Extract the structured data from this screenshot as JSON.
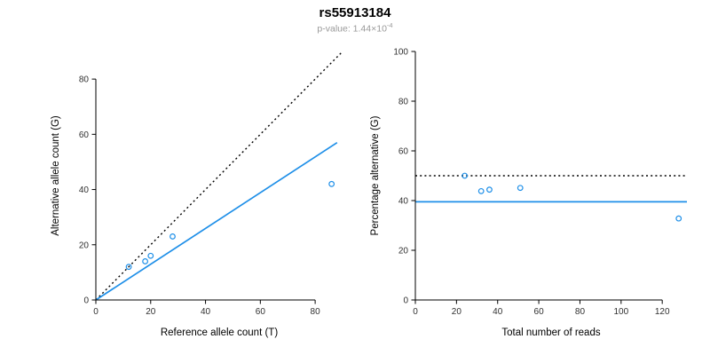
{
  "header": {
    "title": "rs55913184",
    "pvalue_label": "p-value: ",
    "pvalue_base": "1.44×10",
    "pvalue_exponent": "-4"
  },
  "style": {
    "accent": "#1E8FE8",
    "reference_black": "#000000",
    "subtitle_gray": "#999999"
  },
  "chart_data": [
    {
      "type": "scatter",
      "title": "",
      "xlabel": "Reference allele count (T)",
      "ylabel": "Alternative allele count (G)",
      "xlim": [
        0,
        90
      ],
      "ylim": [
        0,
        90
      ],
      "xticks": [
        0,
        20,
        40,
        60,
        80
      ],
      "yticks": [
        0,
        20,
        40,
        60,
        80
      ],
      "grid": false,
      "points": [
        [
          12,
          12
        ],
        [
          18,
          14
        ],
        [
          20,
          16
        ],
        [
          28,
          23
        ],
        [
          86,
          42
        ]
      ],
      "lines": [
        {
          "name": "identity-line",
          "style": "dotted",
          "color": "#000000",
          "x1": 0,
          "y1": 0,
          "x2": 90,
          "y2": 90
        },
        {
          "name": "regression-line",
          "style": "solid",
          "color": "#1E8FE8",
          "x1": 0,
          "y1": 0,
          "x2": 88,
          "y2": 57
        }
      ]
    },
    {
      "type": "scatter",
      "title": "",
      "xlabel": "Total number of reads",
      "ylabel": "Percentage alternative (G)",
      "xlim": [
        0,
        132
      ],
      "ylim": [
        0,
        100
      ],
      "xticks": [
        0,
        20,
        40,
        60,
        80,
        100,
        120
      ],
      "yticks": [
        0,
        20,
        40,
        60,
        80,
        100
      ],
      "grid": false,
      "points": [
        [
          24,
          50
        ],
        [
          32,
          43.8
        ],
        [
          36,
          44.4
        ],
        [
          51,
          45.1
        ],
        [
          128,
          32.8
        ]
      ],
      "lines": [
        {
          "name": "expected-50-line",
          "style": "dotted",
          "color": "#000000",
          "x1": 0,
          "y1": 50,
          "x2": 132,
          "y2": 50
        },
        {
          "name": "mean-percentage-line",
          "style": "solid",
          "color": "#1E8FE8",
          "x1": 0,
          "y1": 39.5,
          "x2": 132,
          "y2": 39.5
        }
      ]
    }
  ]
}
